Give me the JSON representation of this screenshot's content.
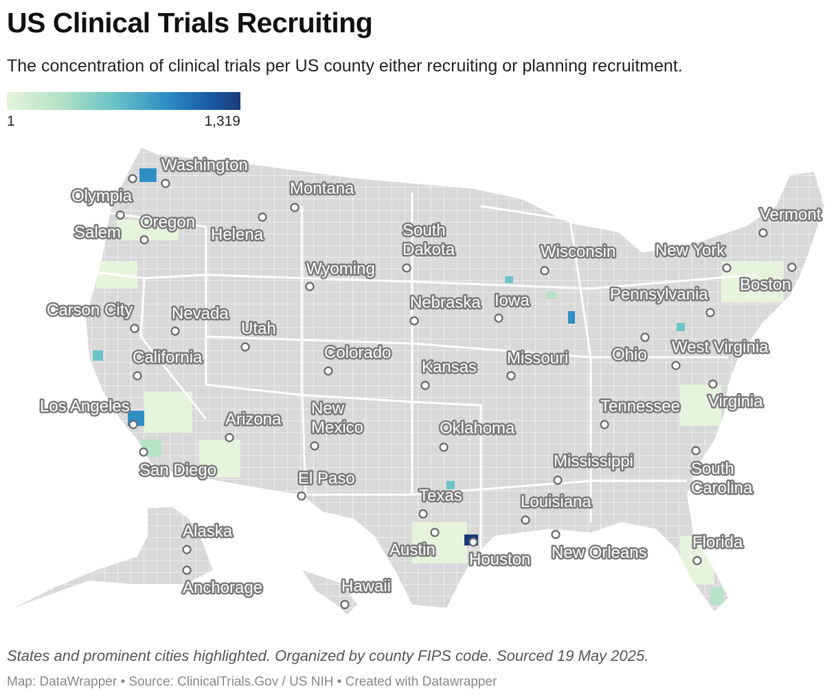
{
  "title": "US Clinical Trials Recruiting",
  "subtitle": "The concentration of clinical trials per US county either recruiting or planning recruitment.",
  "legend": {
    "min_label": "1",
    "max_label": "1,319",
    "min_value": 1,
    "max_value": 1319,
    "colors": [
      "#e6f4dd",
      "#b7e3c6",
      "#6cc4c6",
      "#2f8fc4",
      "#1a5fa8",
      "#1c3a7a"
    ],
    "no_data_color": "#d9d9d9"
  },
  "map": {
    "labels": {
      "washington": "Washington",
      "olympia": "Olympia",
      "salem": "Salem",
      "oregon": "Oregon",
      "helena": "Helena",
      "montana": "Montana",
      "south_dakota_1": "South",
      "south_dakota_2": "Dakota",
      "wisconsin": "Wisconsin",
      "new_york": "New York",
      "vermont": "Vermont",
      "boston": "Boston",
      "wyoming": "Wyoming",
      "nebraska": "Nebraska",
      "iowa": "Iowa",
      "pennsylvania": "Pennsylvania",
      "carson_city": "Carson City",
      "nevada": "Nevada",
      "utah": "Utah",
      "colorado": "Colorado",
      "kansas": "Kansas",
      "missouri": "Missouri",
      "ohio": "Ohio",
      "west_virginia": "West Virginia",
      "california": "California",
      "los_angeles": "Los Angeles",
      "new_mexico_1": "New",
      "new_mexico_2": "Mexico",
      "arizona": "Arizona",
      "oklahoma": "Oklahoma",
      "tennessee": "Tennessee",
      "virginia": "Virginia",
      "san_diego": "San Diego",
      "el_paso": "El Paso",
      "mississippi": "Mississippi",
      "south_carolina_1": "South",
      "south_carolina_2": "Carolina",
      "texas": "Texas",
      "louisiana": "Louisiana",
      "alaska": "Alaska",
      "austin": "Austin",
      "houston": "Houston",
      "new_orleans": "New Orleans",
      "florida": "Florida",
      "anchorage": "Anchorage",
      "hawaii": "Hawaii"
    }
  },
  "notes": "States and prominent cities highlighted. Organized by county FIPS code. Sourced 19 May 2025.",
  "byline": "Map: DataWrapper • Source: ClinicalTrials.Gov / US NIH • Created with Datawrapper"
}
